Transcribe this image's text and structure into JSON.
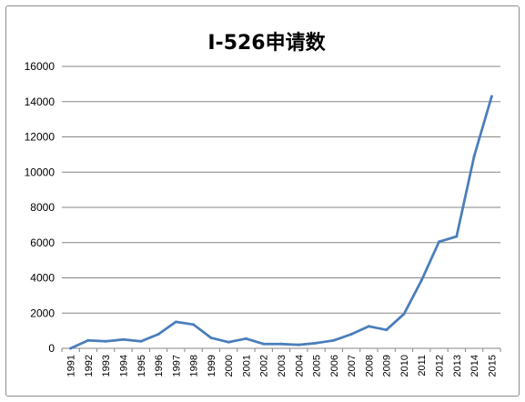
{
  "chart_data": {
    "type": "line",
    "title": "I-526申请数",
    "xlabel": "",
    "ylabel": "",
    "ylim": [
      0,
      16000
    ],
    "yticks": [
      0,
      2000,
      4000,
      6000,
      8000,
      10000,
      12000,
      14000,
      16000
    ],
    "grid": true,
    "legend": "none",
    "line_color": "#4a7ebb",
    "categories": [
      "1991",
      "1992",
      "1993",
      "1994",
      "1995",
      "1996",
      "1997",
      "1998",
      "1999",
      "2000",
      "2001",
      "2002",
      "2003",
      "2004",
      "2005",
      "2006",
      "2007",
      "2008",
      "2009",
      "2010",
      "2011",
      "2012",
      "2013",
      "2014",
      "2015"
    ],
    "series": [
      {
        "values": [
          0,
          450,
          400,
          500,
          400,
          800,
          1500,
          1350,
          600,
          350,
          550,
          250,
          250,
          200,
          300,
          450,
          800,
          1250,
          1050,
          1950,
          3850,
          6050,
          6350,
          10900,
          14300
        ]
      }
    ]
  }
}
